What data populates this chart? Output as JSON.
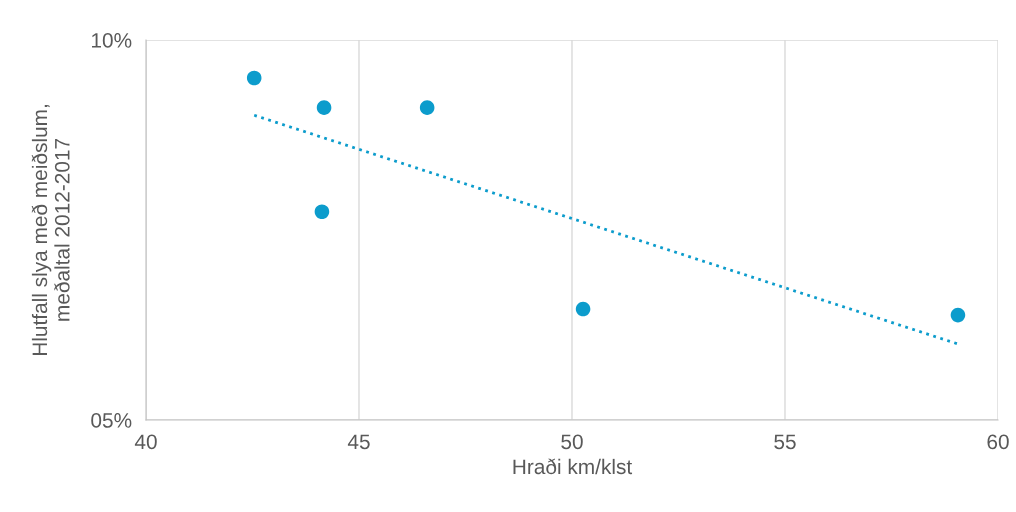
{
  "chart_data": {
    "type": "scatter",
    "xlabel": "Hraði km/klst",
    "ylabel": "Hlutfall slya með meiðslum,\nmeðaltal 2012-2017",
    "xlim": [
      40,
      60
    ],
    "xticks": [
      40,
      45,
      50,
      55,
      60
    ],
    "ylim": [
      5,
      10
    ],
    "yticks": [
      {
        "value": 5,
        "label": "05%"
      },
      {
        "value": 10,
        "label": "10%"
      }
    ],
    "grid": true,
    "series": [
      {
        "marker": "circle",
        "color": "#0c9ccc",
        "x": [
          42.54,
          44.18,
          46.6,
          44.13,
          50.26,
          59.06
        ],
        "values": [
          9.5,
          9.11,
          9.11,
          7.74,
          6.46,
          6.38
        ]
      },
      {
        "type": "line",
        "color": "#0c9ccc",
        "line_style": "dotted",
        "x": [
          42.54,
          59.06
        ],
        "values": [
          9.01,
          6.0
        ]
      }
    ]
  }
}
